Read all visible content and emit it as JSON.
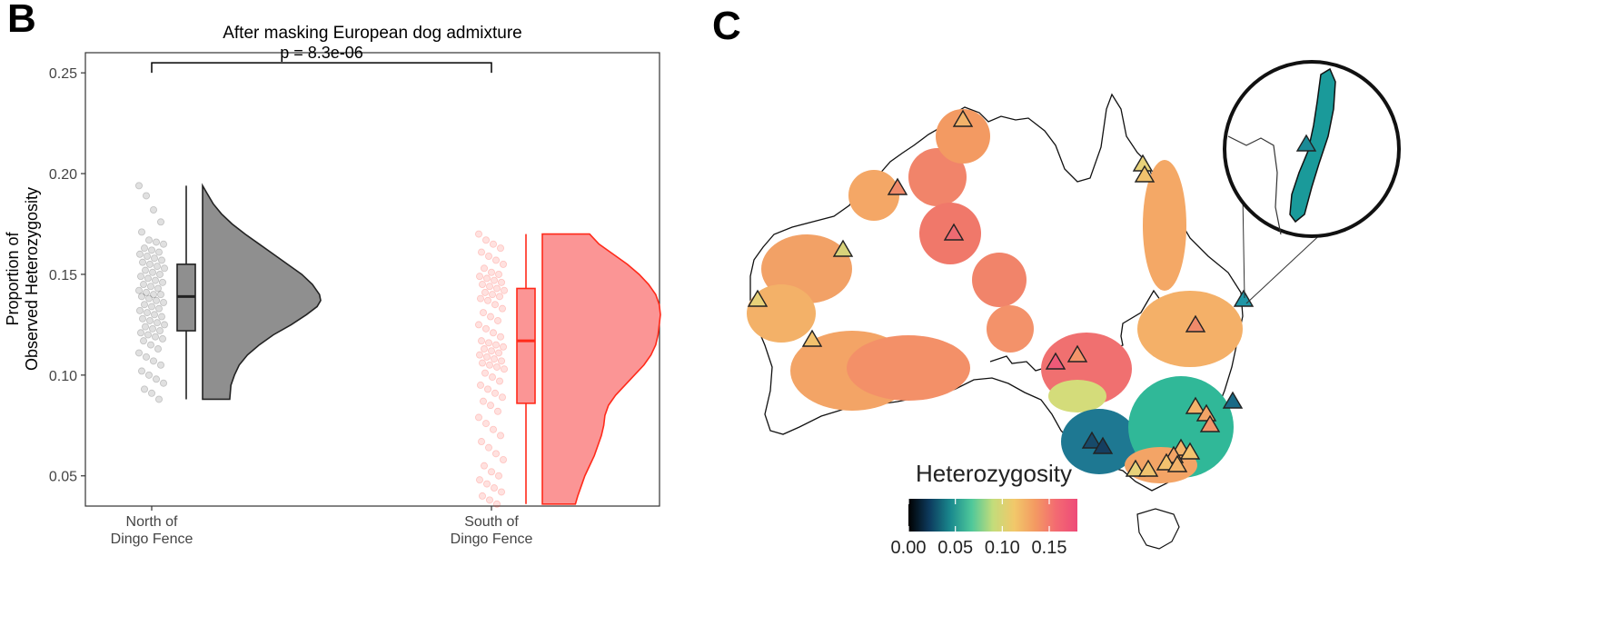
{
  "panel_b_label": "B",
  "panel_c_label": "C",
  "chart_data": [
    {
      "type": "raincloud",
      "title": "After masking European dog admixture",
      "ylabel_line1": "Proportion of",
      "ylabel_line2": "Observed Heterozygosity",
      "ylim": [
        0.035,
        0.26
      ],
      "yticks": [
        0.05,
        0.1,
        0.15,
        0.2,
        0.25
      ],
      "ytick_labels": [
        "0.05",
        "0.10",
        "0.15",
        "0.20",
        "0.25"
      ],
      "grid": false,
      "significance": {
        "label": "p = 8.3e-06",
        "y": 0.255,
        "tick_bottom": 0.25
      },
      "groups": [
        {
          "label_line1": "North of",
          "label_line2": "Dingo Fence",
          "color": "#222222",
          "fill": "#8f8f8f",
          "box": {
            "min": 0.088,
            "q1": 0.122,
            "median": 0.139,
            "q3": 0.155,
            "max": 0.194
          },
          "density": [
            [
              0.088,
              0.23
            ],
            [
              0.095,
              0.24
            ],
            [
              0.1,
              0.27
            ],
            [
              0.105,
              0.31
            ],
            [
              0.11,
              0.38
            ],
            [
              0.115,
              0.48
            ],
            [
              0.12,
              0.6
            ],
            [
              0.125,
              0.75
            ],
            [
              0.13,
              0.88
            ],
            [
              0.134,
              0.97
            ],
            [
              0.137,
              1.0
            ],
            [
              0.14,
              0.99
            ],
            [
              0.145,
              0.93
            ],
            [
              0.15,
              0.84
            ],
            [
              0.155,
              0.72
            ],
            [
              0.16,
              0.6
            ],
            [
              0.165,
              0.48
            ],
            [
              0.17,
              0.36
            ],
            [
              0.175,
              0.25
            ],
            [
              0.18,
              0.16
            ],
            [
              0.185,
              0.09
            ],
            [
              0.19,
              0.04
            ],
            [
              0.194,
              0.0
            ]
          ],
          "points": [
            0.194,
            0.189,
            0.182,
            0.176,
            0.171,
            0.167,
            0.166,
            0.165,
            0.163,
            0.162,
            0.161,
            0.16,
            0.159,
            0.158,
            0.157,
            0.156,
            0.155,
            0.154,
            0.153,
            0.152,
            0.151,
            0.15,
            0.149,
            0.148,
            0.147,
            0.146,
            0.145,
            0.144,
            0.143,
            0.142,
            0.141,
            0.14,
            0.14,
            0.139,
            0.138,
            0.137,
            0.136,
            0.135,
            0.134,
            0.133,
            0.132,
            0.131,
            0.13,
            0.129,
            0.128,
            0.127,
            0.126,
            0.125,
            0.124,
            0.123,
            0.122,
            0.121,
            0.12,
            0.119,
            0.118,
            0.117,
            0.115,
            0.113,
            0.111,
            0.109,
            0.107,
            0.105,
            0.102,
            0.1,
            0.098,
            0.096,
            0.093,
            0.091,
            0.088
          ]
        },
        {
          "label_line1": "South of",
          "label_line2": "Dingo Fence",
          "color": "#ff2a1a",
          "fill": "#fb9595",
          "box": {
            "min": 0.036,
            "q1": 0.086,
            "median": 0.117,
            "q3": 0.143,
            "max": 0.17
          },
          "density": [
            [
              0.036,
              0.28
            ],
            [
              0.04,
              0.3
            ],
            [
              0.045,
              0.33
            ],
            [
              0.05,
              0.36
            ],
            [
              0.055,
              0.4
            ],
            [
              0.06,
              0.44
            ],
            [
              0.065,
              0.47
            ],
            [
              0.07,
              0.5
            ],
            [
              0.075,
              0.52
            ],
            [
              0.08,
              0.53
            ],
            [
              0.085,
              0.56
            ],
            [
              0.09,
              0.62
            ],
            [
              0.095,
              0.7
            ],
            [
              0.1,
              0.78
            ],
            [
              0.105,
              0.86
            ],
            [
              0.11,
              0.92
            ],
            [
              0.115,
              0.96
            ],
            [
              0.12,
              0.98
            ],
            [
              0.125,
              0.99
            ],
            [
              0.13,
              1.0
            ],
            [
              0.135,
              0.99
            ],
            [
              0.14,
              0.96
            ],
            [
              0.145,
              0.9
            ],
            [
              0.15,
              0.82
            ],
            [
              0.155,
              0.72
            ],
            [
              0.16,
              0.6
            ],
            [
              0.165,
              0.48
            ],
            [
              0.17,
              0.4
            ]
          ],
          "points": [
            0.17,
            0.167,
            0.165,
            0.163,
            0.161,
            0.159,
            0.157,
            0.155,
            0.153,
            0.151,
            0.15,
            0.149,
            0.148,
            0.147,
            0.146,
            0.145,
            0.144,
            0.143,
            0.142,
            0.141,
            0.14,
            0.139,
            0.138,
            0.137,
            0.135,
            0.133,
            0.131,
            0.129,
            0.127,
            0.125,
            0.123,
            0.121,
            0.119,
            0.117,
            0.116,
            0.115,
            0.114,
            0.113,
            0.112,
            0.111,
            0.11,
            0.109,
            0.108,
            0.107,
            0.106,
            0.105,
            0.104,
            0.103,
            0.101,
            0.099,
            0.097,
            0.095,
            0.093,
            0.091,
            0.089,
            0.087,
            0.085,
            0.082,
            0.079,
            0.076,
            0.073,
            0.07,
            0.067,
            0.064,
            0.061,
            0.058,
            0.055,
            0.052,
            0.05,
            0.048,
            0.046,
            0.044,
            0.042,
            0.04,
            0.038,
            0.036
          ]
        }
      ]
    },
    {
      "type": "map",
      "legend_title": "Heterozygosity",
      "colorbar_ticks": [
        "0.00",
        "0.05",
        "0.10",
        "0.15"
      ],
      "colorbar_range": [
        0.0,
        0.18
      ],
      "colorbar_stops": [
        "#000000",
        "#0d3b5e",
        "#1a8a8e",
        "#4fc89a",
        "#c3dc7a",
        "#f2c86a",
        "#f39a62",
        "#f36a72",
        "#ee4a78"
      ]
    }
  ]
}
